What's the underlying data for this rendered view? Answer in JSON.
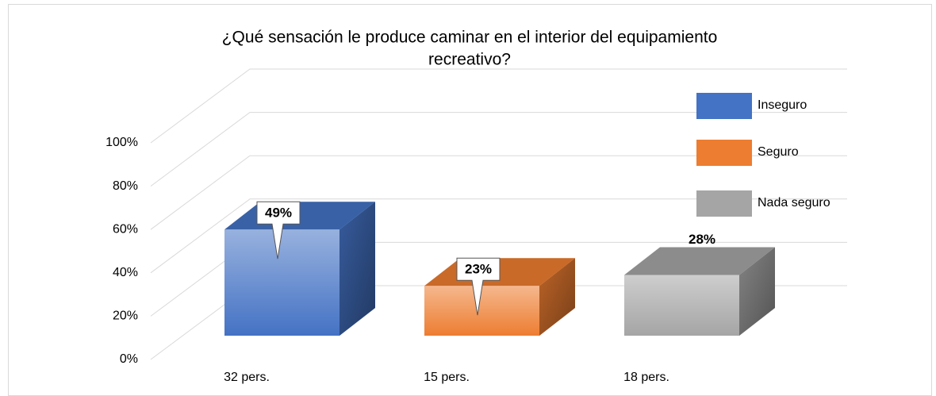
{
  "chart_data": {
    "type": "bar3d",
    "title": [
      "¿Qué sensación le produce caminar en el interior del equipamiento",
      "recreativo?"
    ],
    "categories": [
      "32 pers.",
      "15 pers.",
      "18 pers."
    ],
    "values": [
      49,
      23,
      28
    ],
    "value_labels": [
      "49%",
      "23%",
      "28%"
    ],
    "label_style": [
      "callout",
      "callout",
      "plain"
    ],
    "legend": [
      "Inseguro",
      "Seguro",
      "Nada seguro"
    ],
    "colors": [
      "#4472c4",
      "#ed7d31",
      "#a5a5a5"
    ],
    "ylim": [
      0,
      100
    ],
    "yticks": [
      {
        "value": 0,
        "label": "0%"
      },
      {
        "value": 20,
        "label": "20%"
      },
      {
        "value": 40,
        "label": "40%"
      },
      {
        "value": 60,
        "label": "60%"
      },
      {
        "value": 80,
        "label": "80%"
      },
      {
        "value": 100,
        "label": "100%"
      }
    ],
    "grid": true,
    "legend_position": "right"
  }
}
